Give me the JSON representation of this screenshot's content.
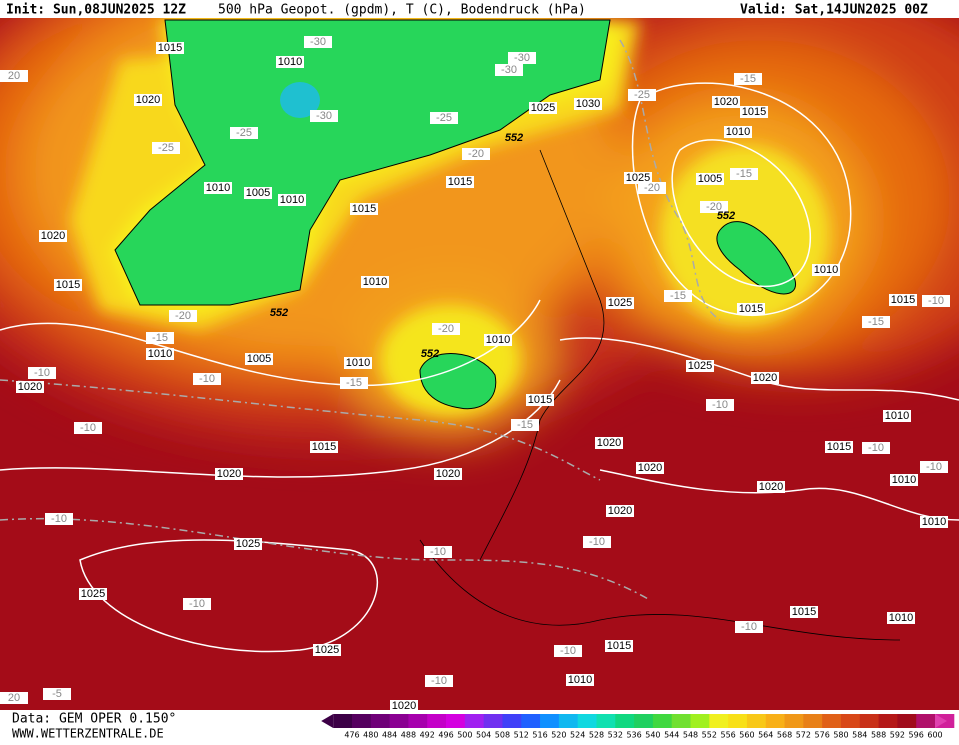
{
  "header": {
    "init": "Init: Sun,08JUN2025 12Z",
    "product": "500 hPa Geopot. (gpdm), T (C), Bodendruck (hPa)",
    "valid": "Valid: Sat,14JUN2025 00Z"
  },
  "footer": {
    "source": "Data: GEM OPER 0.150°",
    "site": "WWW.WETTERZENTRALE.DE"
  },
  "legend": {
    "values": [
      476,
      480,
      484,
      488,
      492,
      496,
      500,
      504,
      508,
      512,
      516,
      520,
      524,
      528,
      532,
      536,
      540,
      544,
      548,
      552,
      556,
      560,
      564,
      568,
      572,
      576,
      580,
      584,
      588,
      592,
      596,
      600
    ]
  },
  "map": {
    "pressure_labels": [
      "1015",
      "1010",
      "1020",
      "1025",
      "1030",
      "1015",
      "1010",
      "1005",
      "1010",
      "1015",
      "1020",
      "1010",
      "1015",
      "1010",
      "1005",
      "1010",
      "1010",
      "1015",
      "1020",
      "1015",
      "1020",
      "1020",
      "1025",
      "1025",
      "1025",
      "1020",
      "1015",
      "1010",
      "1025",
      "1005",
      "1010",
      "1015",
      "1025",
      "1015",
      "1025",
      "1020",
      "1010",
      "1015",
      "1020",
      "1020",
      "1020",
      "1010",
      "1020",
      "1010",
      "1015",
      "1010",
      "1015",
      "1010",
      "1020"
    ],
    "temperature_labels": [
      "-30",
      "-30",
      "-30",
      "-25",
      "-15",
      "-30",
      "-25",
      "-25",
      "-25",
      "-20",
      "-20",
      "-15",
      "-20",
      "-15",
      "-10",
      "-15",
      "-20",
      "-15",
      "-20",
      "-10",
      "-10",
      "-15",
      "-10",
      "-15",
      "-10",
      "-10",
      "-10",
      "-10",
      "-10",
      "-10",
      "-10",
      "-10",
      "-10",
      "-10",
      "-5",
      "20",
      "20"
    ],
    "geopotential_labels": [
      "552",
      "552",
      "552",
      "552"
    ]
  }
}
